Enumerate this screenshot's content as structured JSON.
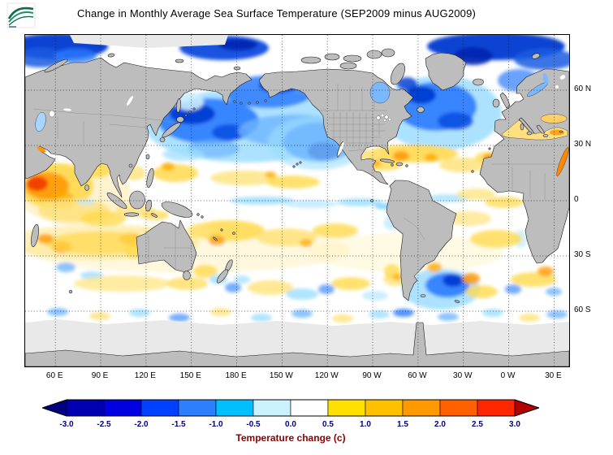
{
  "header": {
    "title": "Change in Monthly Average Sea Surface Temperature (SEP2009 minus AUG2009)",
    "logo_icon": "naval-oceanography-wave-flag-icon"
  },
  "map": {
    "lat_labels": [
      {
        "text": "60 N",
        "lat": 60
      },
      {
        "text": "30 N",
        "lat": 30
      },
      {
        "text": "0",
        "lat": 0
      },
      {
        "text": "30 S",
        "lat": -30
      },
      {
        "text": "60 S",
        "lat": -60
      }
    ],
    "lon_labels": [
      {
        "text": "60 E",
        "lon": 60
      },
      {
        "text": "90 E",
        "lon": 90
      },
      {
        "text": "120 E",
        "lon": 120
      },
      {
        "text": "150 E",
        "lon": 150
      },
      {
        "text": "180 E",
        "lon": 180
      },
      {
        "text": "150 W",
        "lon": -150
      },
      {
        "text": "120 W",
        "lon": -120
      },
      {
        "text": "90 W",
        "lon": -90
      },
      {
        "text": "60 W",
        "lon": -60
      },
      {
        "text": "30 W",
        "lon": -30
      },
      {
        "text": "0 W",
        "lon": 0
      },
      {
        "text": "30 E",
        "lon": 30
      }
    ],
    "colors": {
      "ocean": "#ffffff",
      "land": "#bdbdbd",
      "coastline": "#1a1a1a",
      "ice": "#e9e9e9",
      "grid": "#1a1a1a"
    }
  },
  "colorbar": {
    "title": "Temperature change  (c)",
    "title_color": "#8b0000",
    "tick_color": "#000080",
    "tick_labels": [
      "-3.0",
      "-2.5",
      "-2.0",
      "-1.5",
      "-1.0",
      "-0.5",
      "0.0",
      "0.5",
      "1.0",
      "1.5",
      "2.0",
      "2.5",
      "3.0"
    ],
    "under_arrow_color": "#000080",
    "over_arrow_color": "#b30000",
    "segment_colors": [
      "#0000b3",
      "#0000e0",
      "#0040ff",
      "#2e7fff",
      "#00bfff",
      "#ccf2ff",
      "#ffffff",
      "#ffe000",
      "#ffc000",
      "#ff9900",
      "#ff6000",
      "#ff2600"
    ]
  }
}
